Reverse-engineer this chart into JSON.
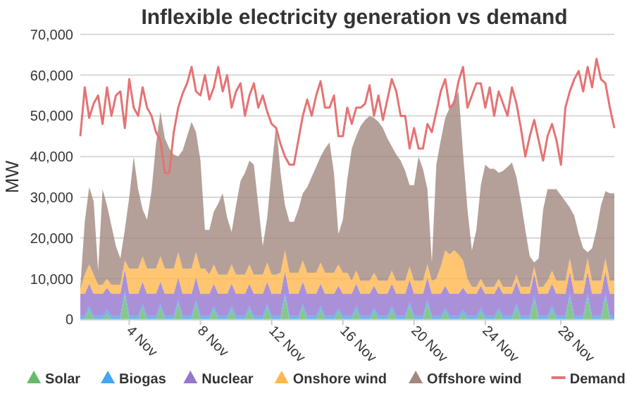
{
  "chart_data": {
    "type": "area",
    "title": "Inflexible electricity generation vs demand",
    "ylabel": "MW",
    "stacked": true,
    "grid": "y",
    "legend": "bottom",
    "ylim": [
      0,
      70000
    ],
    "yticks": [
      0,
      {
        "value": 10000,
        "label": "10,000"
      },
      {
        "value": 20000,
        "label": "20,000"
      },
      {
        "value": 30000,
        "label": "30,000"
      },
      {
        "value": 40000,
        "label": "40,000"
      },
      {
        "value": 50000,
        "label": "50,000"
      },
      {
        "value": 60000,
        "label": "60,000"
      },
      {
        "value": 70000,
        "label": "70,000"
      }
    ],
    "categories": [
      null,
      null,
      null,
      null,
      null,
      null,
      null,
      null,
      null,
      null,
      null,
      "4 Nov",
      null,
      null,
      null,
      null,
      null,
      null,
      null,
      null,
      null,
      null,
      null,
      null,
      null,
      null,
      null,
      "8 Nov",
      null,
      null,
      null,
      null,
      null,
      null,
      null,
      null,
      null,
      null,
      null,
      null,
      null,
      null,
      null,
      "12 Nov",
      null,
      null,
      null,
      null,
      null,
      null,
      null,
      null,
      null,
      null,
      null,
      null,
      null,
      null,
      null,
      "16 Nov",
      null,
      null,
      null,
      null,
      null,
      null,
      null,
      null,
      null,
      null,
      null,
      null,
      null,
      null,
      null,
      "20 Nov",
      null,
      null,
      null,
      null,
      null,
      null,
      null,
      null,
      null,
      null,
      null,
      null,
      null,
      null,
      null,
      "24 Nov",
      null,
      null,
      null,
      null,
      null,
      null,
      null,
      null,
      null,
      null,
      null,
      null,
      null,
      null,
      null,
      null,
      "28 Nov",
      null,
      null,
      null,
      null,
      null,
      null,
      null,
      null,
      null,
      null,
      null,
      null
    ],
    "series": [
      {
        "name": "Solar",
        "type": "area",
        "color": "#66bb6a",
        "values": [
          0,
          0,
          2500,
          0,
          0,
          0,
          1500,
          0,
          0,
          0,
          6000,
          0,
          0,
          0,
          3000,
          0,
          0,
          0,
          3000,
          0,
          0,
          0,
          4000,
          0,
          0,
          0,
          4000,
          0,
          0,
          0,
          2500,
          0,
          0,
          0,
          2500,
          0,
          0,
          0,
          2500,
          0,
          0,
          0,
          3000,
          0,
          0,
          0,
          5500,
          0,
          0,
          0,
          3000,
          0,
          0,
          0,
          2500,
          0,
          0,
          0,
          2000,
          0,
          0,
          0,
          2500,
          0,
          0,
          0,
          2000,
          0,
          0,
          0,
          2500,
          0,
          0,
          0,
          3500,
          0,
          0,
          0,
          4000,
          0,
          0,
          0,
          2000,
          0,
          0,
          0,
          1500,
          0,
          0,
          0,
          2000,
          0,
          0,
          0,
          2000,
          0,
          0,
          0,
          3000,
          0,
          0,
          0,
          5000,
          0,
          0,
          0,
          2500,
          0,
          0,
          0,
          5500,
          0,
          0,
          0,
          5500,
          0,
          0,
          0,
          5500,
          0,
          0
        ]
      },
      {
        "name": "Biogas",
        "type": "area",
        "color": "#42a5f5",
        "values": [
          800,
          800,
          800,
          800,
          800,
          800,
          800,
          800,
          800,
          800,
          800,
          800,
          800,
          800,
          800,
          800,
          800,
          800,
          800,
          800,
          800,
          800,
          800,
          800,
          800,
          800,
          800,
          800,
          800,
          800,
          800,
          800,
          800,
          800,
          800,
          800,
          800,
          800,
          800,
          800,
          800,
          800,
          800,
          800,
          800,
          800,
          800,
          800,
          800,
          800,
          800,
          800,
          800,
          800,
          800,
          800,
          800,
          800,
          800,
          800,
          800,
          800,
          800,
          800,
          800,
          800,
          800,
          800,
          800,
          800,
          800,
          800,
          800,
          800,
          800,
          800,
          800,
          800,
          800,
          800,
          800,
          800,
          800,
          800,
          800,
          800,
          800,
          800,
          800,
          800,
          800,
          800,
          800,
          800,
          800,
          800,
          800,
          800,
          800,
          800,
          800,
          800,
          800,
          800,
          800,
          800,
          800,
          800,
          800,
          800,
          800,
          800,
          800,
          800,
          800,
          800,
          800,
          800,
          800,
          800,
          800
        ]
      },
      {
        "name": "Nuclear",
        "type": "area",
        "color": "#9575cd",
        "values": [
          5500,
          5500,
          5500,
          5500,
          5500,
          5500,
          5500,
          5500,
          5500,
          5500,
          5500,
          5500,
          5500,
          5500,
          5500,
          5500,
          5500,
          5500,
          5500,
          5500,
          5500,
          5500,
          5500,
          5500,
          5500,
          5500,
          5500,
          5500,
          5500,
          5500,
          5500,
          5500,
          5500,
          5500,
          5500,
          5500,
          5500,
          5500,
          5500,
          5500,
          5500,
          5500,
          5500,
          5500,
          5500,
          5500,
          5500,
          5500,
          5500,
          5500,
          5500,
          5500,
          5500,
          5500,
          5500,
          5500,
          5500,
          5500,
          5500,
          5500,
          5500,
          5500,
          5500,
          5500,
          5500,
          5500,
          5500,
          5500,
          5500,
          5500,
          5500,
          5500,
          5500,
          5500,
          5500,
          5500,
          5500,
          5500,
          5500,
          5500,
          5500,
          5500,
          5500,
          5500,
          5500,
          5500,
          5500,
          5500,
          5500,
          5500,
          5500,
          5500,
          5500,
          5500,
          5500,
          5500,
          5500,
          5500,
          5500,
          5500,
          5500,
          5500,
          5500,
          5500,
          5500,
          5500,
          5500,
          5500,
          5500,
          5500,
          5500,
          5500,
          5500,
          5500,
          5500,
          5500,
          5500,
          5500,
          5500,
          5500,
          5500
        ]
      },
      {
        "name": "Onshore wind",
        "type": "area",
        "color": "#ffb74d",
        "values": [
          1200,
          4700,
          4700,
          4700,
          2200,
          2200,
          2200,
          2200,
          2200,
          2200,
          2200,
          6200,
          6200,
          6200,
          6200,
          6200,
          6200,
          6200,
          6200,
          6200,
          6200,
          6200,
          6200,
          6200,
          6200,
          6200,
          6200,
          6200,
          6200,
          4700,
          4700,
          4700,
          4700,
          4700,
          4700,
          4700,
          4700,
          4700,
          4700,
          4700,
          4700,
          4700,
          4700,
          4700,
          4700,
          5200,
          5200,
          5200,
          5200,
          5200,
          5200,
          5200,
          5200,
          5200,
          5200,
          5200,
          5200,
          5200,
          5200,
          5200,
          5200,
          3200,
          3200,
          3200,
          3200,
          3200,
          3200,
          3200,
          3200,
          3200,
          3200,
          3200,
          3200,
          3200,
          3200,
          3200,
          3200,
          3200,
          3200,
          3200,
          3700,
          6700,
          8700,
          9700,
          10700,
          9700,
          6700,
          3700,
          1700,
          1700,
          1700,
          1700,
          1700,
          1700,
          1700,
          1700,
          1700,
          1700,
          1700,
          1700,
          1700,
          1700,
          1700,
          1700,
          1700,
          3200,
          3200,
          3200,
          3200,
          3200,
          3200,
          3200,
          3200,
          3200,
          3200,
          3200,
          3200,
          3200,
          3200,
          3200,
          3200
        ]
      },
      {
        "name": "Offshore wind",
        "type": "area",
        "color": "#a1887f",
        "values": [
          500,
          13000,
          19000,
          18000,
          3500,
          23500,
          18000,
          14500,
          9500,
          6500,
          7500,
          17500,
          27500,
          19500,
          11500,
          12000,
          19000,
          30500,
          35500,
          32000,
          29500,
          28000,
          23500,
          29000,
          32500,
          36000,
          29500,
          26500,
          9500,
          11000,
          13000,
          17500,
          20000,
          14000,
          8000,
          17000,
          23000,
          25000,
          25500,
          27000,
          17000,
          7000,
          11000,
          26000,
          37000,
          24500,
          11000,
          12500,
          12500,
          15500,
          16500,
          21000,
          23500,
          26000,
          26000,
          30500,
          32000,
          24500,
          7500,
          13000,
          23000,
          32500,
          33000,
          38000,
          39500,
          40500,
          38000,
          39000,
          37500,
          35000,
          30500,
          31000,
          29500,
          27000,
          20000,
          23500,
          30500,
          27500,
          18500,
          4500,
          28000,
          31000,
          32500,
          36000,
          37000,
          40000,
          26500,
          17000,
          9000,
          14000,
          23000,
          30000,
          29000,
          29000,
          26000,
          28500,
          29500,
          30500,
          24000,
          21000,
          14000,
          7500,
          1000,
          7000,
          19000,
          22500,
          20000,
          22500,
          21000,
          19500,
          12500,
          16000,
          11500,
          8000,
          1500,
          8000,
          12500,
          18500,
          16500,
          21500,
          21500
        ]
      },
      {
        "name": "Demand",
        "type": "line",
        "color": "#e57373",
        "values": [
          45000,
          57000,
          49500,
          53000,
          55000,
          48000,
          57000,
          50000,
          55000,
          56000,
          47000,
          59000,
          52000,
          50000,
          57000,
          52000,
          50000,
          46000,
          44000,
          36000,
          36000,
          46000,
          52000,
          55500,
          58000,
          62000,
          56000,
          55000,
          60000,
          54000,
          57000,
          62000,
          56000,
          60000,
          52000,
          56000,
          58000,
          50000,
          55000,
          58000,
          52000,
          55000,
          51000,
          48000,
          47000,
          43000,
          40000,
          38000,
          38000,
          44000,
          50000,
          54000,
          50000,
          55000,
          58500,
          52000,
          52000,
          55000,
          45000,
          45000,
          52000,
          48000,
          52000,
          52000,
          53000,
          57500,
          50000,
          55000,
          49000,
          54000,
          59000,
          56000,
          50000,
          50000,
          42000,
          47000,
          42000,
          42000,
          48000,
          46000,
          51000,
          56000,
          59000,
          52000,
          53000,
          58500,
          62000,
          52000,
          55000,
          58000,
          58000,
          52000,
          57000,
          50000,
          56000,
          53000,
          50000,
          57000,
          53000,
          47000,
          40000,
          45000,
          49000,
          44000,
          39000,
          45000,
          48000,
          44000,
          38000,
          52000,
          56000,
          59000,
          61000,
          56000,
          62000,
          57000,
          64000,
          59000,
          58000,
          52000,
          47000
        ]
      }
    ]
  }
}
